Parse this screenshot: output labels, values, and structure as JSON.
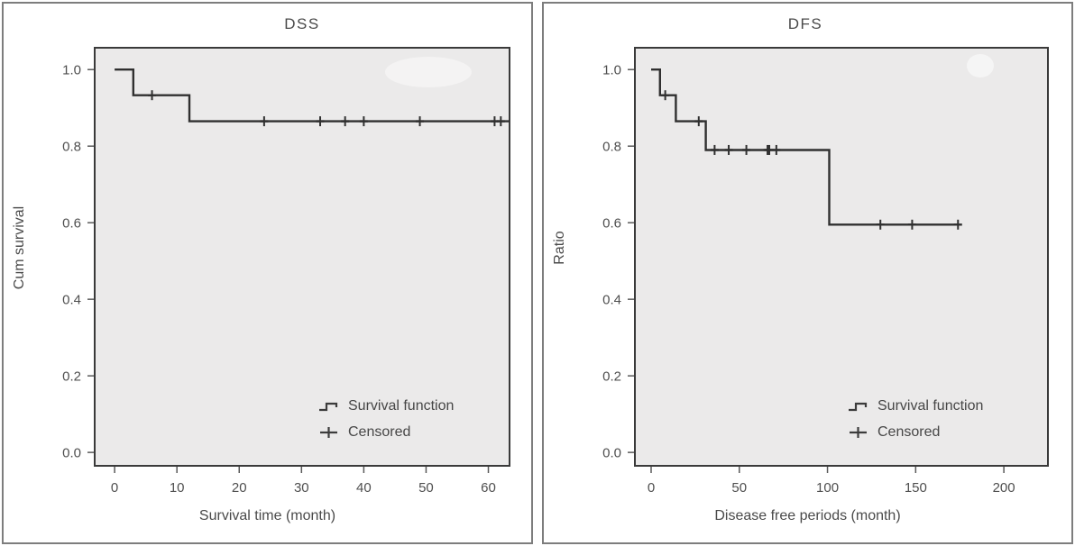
{
  "colors": {
    "curve": "#303030",
    "plot_background": "#ebeaea",
    "panel_border": "#7d7d7d",
    "axis_frame": "#3a3a3a",
    "tick": "#5a5a5a",
    "text": "#4a4a4a"
  },
  "chart_data": [
    {
      "panel": "left",
      "type": "line",
      "subtype": "kaplan_meier_step",
      "title": "DSS",
      "xlabel": "Survival time (month)",
      "ylabel": "Cum survival",
      "grid": false,
      "xlim": [
        -3.2,
        63.4
      ],
      "ylim": [
        -0.035,
        1.057
      ],
      "xticks": [
        0,
        10,
        20,
        30,
        40,
        50,
        60
      ],
      "ytick_labels": [
        "0.0",
        "0.2",
        "0.4",
        "0.6",
        "0.8",
        "1.0"
      ],
      "legend_position": "inside bottom-right",
      "legend": [
        {
          "symbol": "step-line",
          "label": "Survival function"
        },
        {
          "symbol": "plus",
          "label": "Censored"
        }
      ],
      "series": [
        {
          "name": "Survival function",
          "step_points": [
            [
              0,
              1.0
            ],
            [
              3,
              0.933
            ],
            [
              12,
              0.865
            ],
            [
              63.4,
              0.865
            ]
          ],
          "censored_marks": [
            [
              6,
              0.933
            ],
            [
              24,
              0.865
            ],
            [
              33,
              0.865
            ],
            [
              37,
              0.865
            ],
            [
              40,
              0.865
            ],
            [
              49,
              0.865
            ],
            [
              61,
              0.865
            ],
            [
              62,
              0.865
            ]
          ]
        }
      ]
    },
    {
      "panel": "right",
      "type": "line",
      "subtype": "kaplan_meier_step",
      "title": "DFS",
      "xlabel": "Disease free periods (month)",
      "ylabel": "Ratio",
      "grid": false,
      "xlim": [
        -9.2,
        225
      ],
      "ylim": [
        -0.035,
        1.057
      ],
      "xticks": [
        0,
        50,
        100,
        150,
        200
      ],
      "ytick_labels": [
        "0.0",
        "0.2",
        "0.4",
        "0.6",
        "0.8",
        "1.0"
      ],
      "legend_position": "inside bottom-right",
      "legend": [
        {
          "symbol": "step-line",
          "label": "Survival function"
        },
        {
          "symbol": "plus",
          "label": "Censored"
        }
      ],
      "series": [
        {
          "name": "Survival function",
          "step_points": [
            [
              0,
              1.0
            ],
            [
              5,
              0.933
            ],
            [
              14,
              0.865
            ],
            [
              31,
              0.79
            ],
            [
              101,
              0.595
            ],
            [
              174,
              0.595
            ]
          ],
          "censored_marks": [
            [
              8,
              0.933
            ],
            [
              27,
              0.865
            ],
            [
              36,
              0.79
            ],
            [
              44,
              0.79
            ],
            [
              54,
              0.79
            ],
            [
              66,
              0.79
            ],
            [
              67,
              0.79
            ],
            [
              71,
              0.79
            ],
            [
              130,
              0.595
            ],
            [
              148,
              0.595
            ],
            [
              174,
              0.595
            ]
          ]
        }
      ]
    }
  ]
}
